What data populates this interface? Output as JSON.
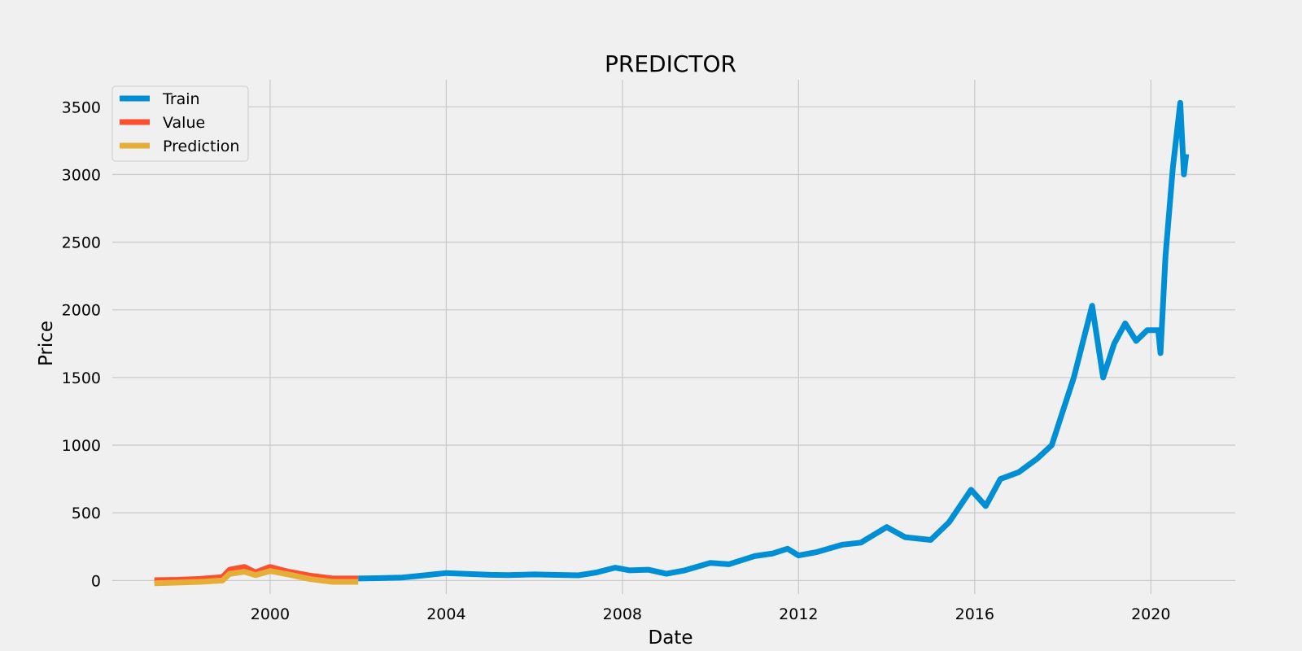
{
  "chart_data": {
    "type": "line",
    "title": "PREDICTOR",
    "xlabel": "Date",
    "ylabel": "Price",
    "x_ticks": [
      "2000",
      "2004",
      "2008",
      "2012",
      "2016",
      "2020"
    ],
    "y_ticks": [
      "0",
      "500",
      "1000",
      "1500",
      "2000",
      "2500",
      "3000",
      "3500"
    ],
    "xlim": [
      "1996-06-01",
      "2021-12-01"
    ],
    "ylim": [
      -100,
      3700
    ],
    "grid": true,
    "legend_position": "top-left",
    "series": [
      {
        "name": "Train",
        "color": "#008fd5",
        "points": [
          [
            "2002-01-01",
            15
          ],
          [
            "2002-06-01",
            17
          ],
          [
            "2003-01-01",
            22
          ],
          [
            "2003-06-01",
            35
          ],
          [
            "2004-01-01",
            55
          ],
          [
            "2004-06-01",
            50
          ],
          [
            "2005-01-01",
            42
          ],
          [
            "2005-06-01",
            40
          ],
          [
            "2006-01-01",
            45
          ],
          [
            "2006-06-01",
            42
          ],
          [
            "2007-01-01",
            38
          ],
          [
            "2007-06-01",
            60
          ],
          [
            "2007-11-01",
            95
          ],
          [
            "2008-03-01",
            75
          ],
          [
            "2008-08-01",
            80
          ],
          [
            "2009-01-01",
            50
          ],
          [
            "2009-06-01",
            75
          ],
          [
            "2010-01-01",
            130
          ],
          [
            "2010-06-01",
            120
          ],
          [
            "2011-01-01",
            180
          ],
          [
            "2011-06-01",
            200
          ],
          [
            "2011-10-01",
            235
          ],
          [
            "2012-01-01",
            185
          ],
          [
            "2012-06-01",
            210
          ],
          [
            "2013-01-01",
            265
          ],
          [
            "2013-06-01",
            280
          ],
          [
            "2014-01-01",
            395
          ],
          [
            "2014-06-01",
            320
          ],
          [
            "2015-01-01",
            300
          ],
          [
            "2015-06-01",
            430
          ],
          [
            "2015-12-01",
            670
          ],
          [
            "2016-04-01",
            550
          ],
          [
            "2016-08-01",
            750
          ],
          [
            "2017-01-01",
            800
          ],
          [
            "2017-06-01",
            900
          ],
          [
            "2017-10-01",
            1000
          ],
          [
            "2018-01-01",
            1250
          ],
          [
            "2018-04-01",
            1500
          ],
          [
            "2018-09-01",
            2030
          ],
          [
            "2018-12-01",
            1500
          ],
          [
            "2019-03-01",
            1750
          ],
          [
            "2019-06-01",
            1900
          ],
          [
            "2019-09-01",
            1770
          ],
          [
            "2019-12-01",
            1850
          ],
          [
            "2020-03-01",
            1850
          ],
          [
            "2020-03-20",
            1680
          ],
          [
            "2020-05-01",
            2400
          ],
          [
            "2020-07-01",
            3050
          ],
          [
            "2020-09-01",
            3530
          ],
          [
            "2020-10-01",
            3000
          ],
          [
            "2020-10-20",
            3150
          ]
        ]
      },
      {
        "name": "Value",
        "color": "#fc4f30",
        "points": [
          [
            "1997-05-15",
            2
          ],
          [
            "1997-12-01",
            5
          ],
          [
            "1998-06-01",
            12
          ],
          [
            "1998-12-01",
            25
          ],
          [
            "1999-02-01",
            80
          ],
          [
            "1999-06-01",
            100
          ],
          [
            "1999-09-01",
            60
          ],
          [
            "2000-01-01",
            100
          ],
          [
            "2000-06-01",
            65
          ],
          [
            "2000-12-01",
            35
          ],
          [
            "2001-06-01",
            15
          ],
          [
            "2002-01-01",
            15
          ]
        ]
      },
      {
        "name": "Prediction",
        "color": "#e5ae38",
        "points": [
          [
            "1997-05-15",
            -20
          ],
          [
            "1997-12-01",
            -15
          ],
          [
            "1998-06-01",
            -10
          ],
          [
            "1998-12-01",
            0
          ],
          [
            "1999-02-01",
            50
          ],
          [
            "1999-06-01",
            65
          ],
          [
            "1999-09-01",
            40
          ],
          [
            "2000-01-01",
            70
          ],
          [
            "2000-06-01",
            45
          ],
          [
            "2000-12-01",
            10
          ],
          [
            "2001-06-01",
            -10
          ],
          [
            "2002-01-01",
            -10
          ]
        ]
      }
    ]
  }
}
